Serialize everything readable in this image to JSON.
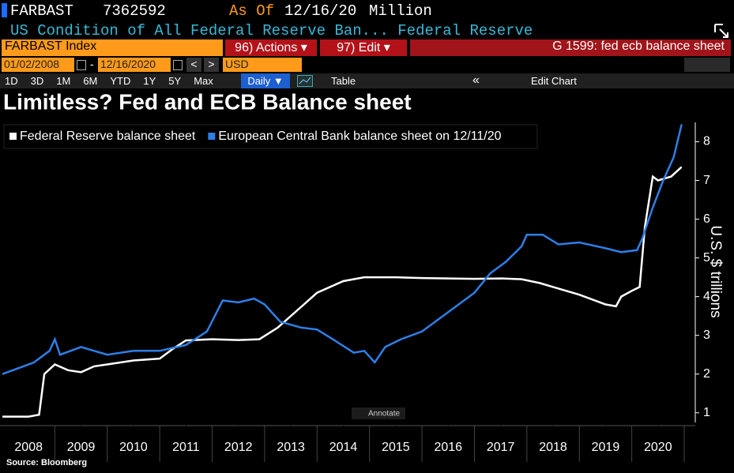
{
  "terminal": {
    "ticker": "FARBAST",
    "last": "7362592",
    "as_of_label": "As Of",
    "as_of": "12/16/20",
    "units": "Million",
    "description": "US Condition of All Federal Reserve Ban... Federal Reserve",
    "security": "FARBAST Index",
    "actions": "96) Actions ▾",
    "edit": "97) Edit ▾",
    "page": "G 1599: fed ecb balance sheet",
    "start_date": "01/02/2008",
    "date_sep": "-",
    "end_date": "12/16/2020",
    "prev": "<",
    "next": ">",
    "currency": "USD",
    "ranges": [
      "1D",
      "3D",
      "1M",
      "6M",
      "YTD",
      "1Y",
      "5Y",
      "Max"
    ],
    "frequency": "Daily ▼",
    "table": "Table",
    "collapse": "«",
    "edit_chart": "Edit Chart",
    "annotate": "Annotate",
    "source": "Source: Bloomberg"
  },
  "chart_data": {
    "type": "line",
    "title": "Limitless? Fed and ECB Balance sheet",
    "y_label": "U.S. $ trillions",
    "xlim": [
      2008,
      2021
    ],
    "xticks": [
      {
        "value": 2008.5,
        "label": "2008"
      },
      {
        "value": 2009.5,
        "label": "2009"
      },
      {
        "value": 2010.5,
        "label": "2010"
      },
      {
        "value": 2011.5,
        "label": "2011"
      },
      {
        "value": 2012.5,
        "label": "2012"
      },
      {
        "value": 2013.5,
        "label": "2013"
      },
      {
        "value": 2014.5,
        "label": "2014"
      },
      {
        "value": 2015.5,
        "label": "2015"
      },
      {
        "value": 2016.5,
        "label": "2016"
      },
      {
        "value": 2017.5,
        "label": "2017"
      },
      {
        "value": 2018.5,
        "label": "2018"
      },
      {
        "value": 2019.5,
        "label": "2019"
      },
      {
        "value": 2020.5,
        "label": "2020"
      }
    ],
    "ylim": [
      0.75,
      8.5
    ],
    "yticks": [
      1,
      2,
      3,
      4,
      5,
      6,
      7,
      8
    ],
    "legend": "top-left",
    "series": [
      {
        "name": "Federal Reserve balance sheet",
        "color": "#ffffff",
        "x": [
          2008.0,
          2008.5,
          2008.7,
          2008.8,
          2009.0,
          2009.25,
          2009.5,
          2009.75,
          2010.0,
          2010.5,
          2011.0,
          2011.25,
          2011.5,
          2012.0,
          2012.5,
          2012.9,
          2013.25,
          2013.5,
          2013.75,
          2014.0,
          2014.5,
          2014.9,
          2015.5,
          2016.0,
          2016.5,
          2017.0,
          2017.5,
          2017.9,
          2018.25,
          2018.5,
          2019.0,
          2019.5,
          2019.7,
          2019.8,
          2020.0,
          2020.15,
          2020.25,
          2020.4,
          2020.5,
          2020.75,
          2020.95
        ],
        "values": [
          0.9,
          0.9,
          0.95,
          2.0,
          2.25,
          2.1,
          2.05,
          2.2,
          2.25,
          2.35,
          2.4,
          2.65,
          2.87,
          2.9,
          2.88,
          2.9,
          3.2,
          3.5,
          3.8,
          4.1,
          4.4,
          4.5,
          4.5,
          4.48,
          4.47,
          4.46,
          4.47,
          4.45,
          4.35,
          4.25,
          4.05,
          3.8,
          3.75,
          4.0,
          4.15,
          4.25,
          5.8,
          7.1,
          7.0,
          7.1,
          7.35
        ]
      },
      {
        "name": "European Central Bank balance sheet on 12/11/20",
        "color": "#2e7fe8",
        "x": [
          2008.0,
          2008.3,
          2008.6,
          2008.9,
          2009.0,
          2009.1,
          2009.5,
          2010.0,
          2010.5,
          2011.0,
          2011.5,
          2011.9,
          2012.2,
          2012.5,
          2012.8,
          2013.0,
          2013.3,
          2013.7,
          2014.0,
          2014.3,
          2014.7,
          2014.9,
          2015.1,
          2015.3,
          2015.6,
          2016.0,
          2016.5,
          2017.0,
          2017.3,
          2017.6,
          2017.9,
          2018.0,
          2018.3,
          2018.6,
          2019.0,
          2019.5,
          2019.8,
          2020.1,
          2020.2,
          2020.4,
          2020.6,
          2020.8,
          2020.95
        ],
        "values": [
          2.0,
          2.15,
          2.3,
          2.6,
          2.9,
          2.5,
          2.7,
          2.5,
          2.6,
          2.6,
          2.75,
          3.1,
          3.9,
          3.85,
          3.95,
          3.8,
          3.35,
          3.2,
          3.15,
          2.9,
          2.55,
          2.6,
          2.3,
          2.7,
          2.9,
          3.1,
          3.6,
          4.1,
          4.6,
          4.9,
          5.3,
          5.6,
          5.6,
          5.35,
          5.4,
          5.25,
          5.15,
          5.2,
          5.5,
          6.3,
          7.0,
          7.6,
          8.45
        ]
      }
    ]
  }
}
